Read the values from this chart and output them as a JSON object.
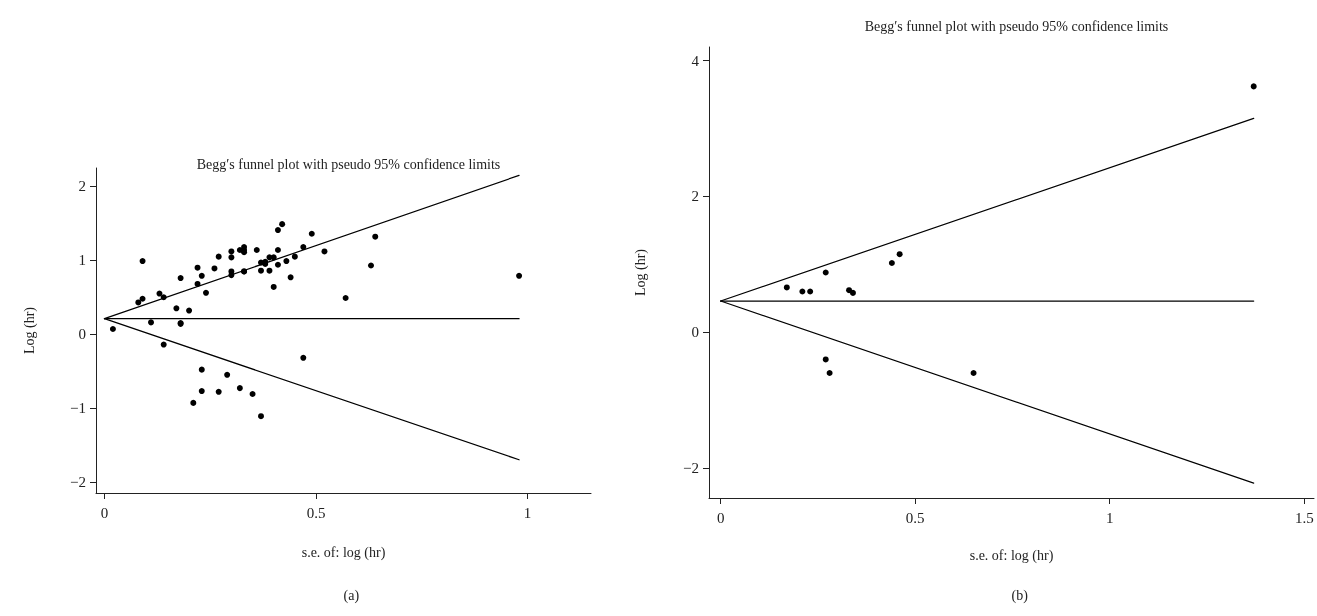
{
  "chart_data": [
    {
      "type": "scatter",
      "title": "Begg′s funnel plot with pseudo 95% confidence limits",
      "xlabel": "s.e. of: log (hr)",
      "ylabel": "Log (hr)",
      "annotations": [
        "(a)"
      ],
      "xlim": [
        -0.02,
        1.15
      ],
      "ylim": [
        -2.15,
        2.25
      ],
      "xticks": [
        0,
        0.5,
        1
      ],
      "yticks": [
        -2,
        -1,
        0,
        1,
        2
      ],
      "grid": false,
      "marker": "circle",
      "line_style": "solid",
      "series": [
        {
          "color": "#000000",
          "x": [
            0.02,
            0.08,
            0.09,
            0.09,
            0.11,
            0.13,
            0.14,
            0.14,
            0.17,
            0.18,
            0.18,
            0.18,
            0.2,
            0.21,
            0.22,
            0.22,
            0.23,
            0.23,
            0.23,
            0.24,
            0.26,
            0.27,
            0.27,
            0.29,
            0.3,
            0.3,
            0.3,
            0.3,
            0.32,
            0.32,
            0.33,
            0.33,
            0.33,
            0.33,
            0.33,
            0.35,
            0.36,
            0.37,
            0.37,
            0.37,
            0.38,
            0.38,
            0.39,
            0.39,
            0.4,
            0.4,
            0.41,
            0.41,
            0.41,
            0.42,
            0.43,
            0.44,
            0.45,
            0.47,
            0.47,
            0.49,
            0.52,
            0.57,
            0.64,
            0.63,
            0.98
          ],
          "values": [
            0.07,
            0.43,
            0.48,
            0.99,
            0.16,
            0.55,
            0.5,
            -0.14,
            0.35,
            0.76,
            0.14,
            0.15,
            0.32,
            -0.93,
            0.68,
            0.9,
            -0.48,
            -0.77,
            0.79,
            0.56,
            0.89,
            -0.78,
            1.05,
            -0.55,
            0.85,
            1.04,
            0.8,
            1.12,
            1.14,
            -0.73,
            1.18,
            0.85,
            1.14,
            1.11,
            0.85,
            -0.81,
            1.14,
            0.97,
            -1.11,
            0.86,
            0.98,
            0.95,
            1.04,
            0.86,
            0.64,
            1.04,
            0.94,
            1.14,
            1.41,
            1.49,
            0.99,
            0.77,
            1.05,
            -0.32,
            1.18,
            1.36,
            1.12,
            0.49,
            1.32,
            0.93,
            0.79
          ]
        },
        {
          "type": "line",
          "marker": "none",
          "color": "#000000",
          "x": [
            0,
            0.98
          ],
          "values": [
            0.21,
            2.15
          ]
        },
        {
          "type": "line",
          "marker": "none",
          "color": "#000000",
          "x": [
            0,
            0.98
          ],
          "values": [
            0.21,
            0.21
          ]
        },
        {
          "type": "line",
          "marker": "none",
          "color": "#000000",
          "x": [
            0,
            0.98
          ],
          "values": [
            0.21,
            -1.7
          ]
        }
      ]
    },
    {
      "type": "scatter",
      "title": "Begg′s funnel plot with pseudo 95% confidence limits",
      "xlabel": "s.e. of: log (hr)",
      "ylabel": "Log (hr)",
      "annotations": [
        "(b)"
      ],
      "xlim": [
        -0.03,
        1.525
      ],
      "ylim": [
        -2.44,
        4.2
      ],
      "xticks": [
        0,
        0.5,
        1,
        1.5
      ],
      "yticks": [
        -2,
        0,
        2,
        4
      ],
      "grid": false,
      "marker": "circle",
      "line_style": "solid",
      "series": [
        {
          "color": "#000000",
          "x": [
            1.37,
            0.17,
            0.21,
            0.23,
            0.27,
            0.33,
            0.34,
            0.44,
            0.46,
            0.27,
            0.28,
            0.65
          ],
          "values": [
            3.62,
            0.66,
            0.6,
            0.6,
            0.88,
            0.62,
            0.58,
            1.02,
            1.15,
            -0.4,
            -0.6,
            -0.6
          ]
        },
        {
          "type": "line",
          "marker": "none",
          "color": "#000000",
          "x": [
            0,
            1.37
          ],
          "values": [
            0.46,
            3.15
          ]
        },
        {
          "type": "line",
          "marker": "none",
          "color": "#000000",
          "x": [
            0,
            1.37
          ],
          "values": [
            0.46,
            0.46
          ]
        },
        {
          "type": "line",
          "marker": "none",
          "color": "#000000",
          "x": [
            0,
            1.37
          ],
          "values": [
            0.46,
            -2.22
          ]
        }
      ]
    }
  ]
}
